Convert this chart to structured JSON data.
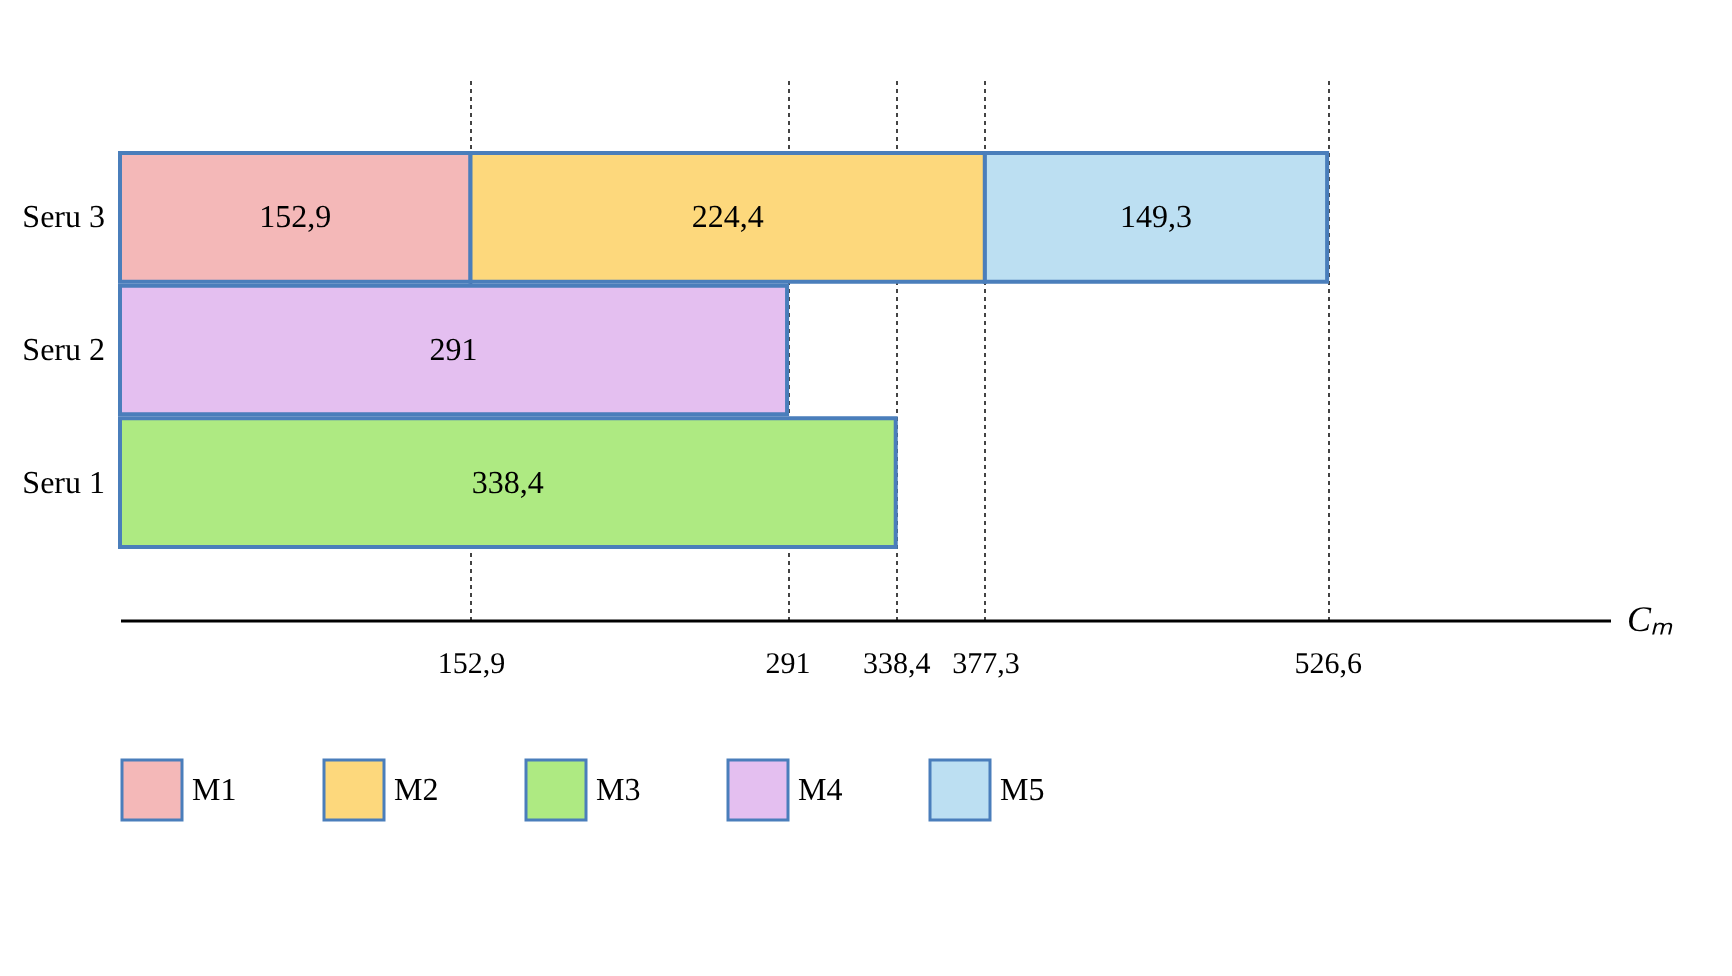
{
  "chart_data": {
    "type": "bar",
    "orientation": "horizontal",
    "stacked": true,
    "xlabel": "Cₘ",
    "categories": [
      "Seru 3",
      "Seru 2",
      "Seru 1"
    ],
    "series": [
      {
        "name": "M1",
        "color": "#f4b8b8",
        "values": [
          152.9,
          null,
          null
        ],
        "value_labels": [
          "152,9",
          null,
          null
        ]
      },
      {
        "name": "M2",
        "color": "#fdd87c",
        "values": [
          224.4,
          null,
          null
        ],
        "value_labels": [
          "224,4",
          null,
          null
        ]
      },
      {
        "name": "M3",
        "color": "#aeea82",
        "values": [
          null,
          null,
          338.4
        ],
        "value_labels": [
          null,
          null,
          "338,4"
        ]
      },
      {
        "name": "M4",
        "color": "#e4bff0",
        "values": [
          null,
          291,
          null
        ],
        "value_labels": [
          null,
          "291",
          null
        ]
      },
      {
        "name": "M5",
        "color": "#bcdff2",
        "values": [
          149.3,
          null,
          null
        ],
        "value_labels": [
          "149,3",
          null,
          null
        ]
      }
    ],
    "xlim": [
      0,
      650
    ],
    "xticks": [
      {
        "value": 152.9,
        "label": "152,9"
      },
      {
        "value": 291,
        "label": "291"
      },
      {
        "value": 338.4,
        "label": "338,4"
      },
      {
        "value": 377.3,
        "label": "377,3"
      },
      {
        "value": 526.6,
        "label": "526,6"
      }
    ],
    "grid": "x",
    "legend": "bottom"
  }
}
